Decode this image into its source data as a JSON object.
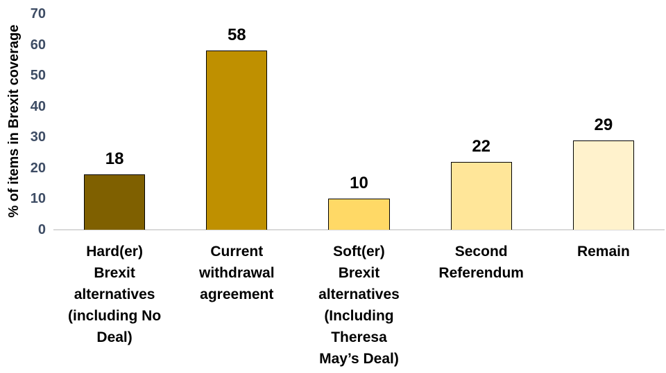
{
  "chart_data": {
    "type": "bar",
    "title": "",
    "xlabel": "",
    "ylabel": "% of items in Brexit coverage",
    "categories": [
      "Hard(er) Brexit alternatives (including No Deal)",
      "Current withdrawal agreement",
      "Soft(er) Brexit alternatives (Including Theresa May’s Deal)",
      "Second Referendum",
      "Remain"
    ],
    "category_lines": [
      [
        "Hard(er)",
        "Brexit",
        "alternatives",
        "(including No",
        "Deal)"
      ],
      [
        "Current",
        "withdrawal",
        "agreement"
      ],
      [
        "Soft(er)",
        "Brexit",
        "alternatives",
        "(Including",
        "Theresa",
        "May’s Deal)"
      ],
      [
        "Second",
        "Referendum"
      ],
      [
        "Remain"
      ]
    ],
    "values": [
      18,
      58,
      10,
      22,
      29
    ],
    "data_labels": [
      "18",
      "58",
      "10",
      "22",
      "29"
    ],
    "yticks": [
      0,
      10,
      20,
      30,
      40,
      50,
      60,
      70
    ],
    "ylim": [
      0,
      70
    ],
    "grid": false,
    "legend": "none",
    "bar_colors": [
      "#7F6000",
      "#BF9000",
      "#FFD966",
      "#FFE699",
      "#FFF2CC"
    ],
    "bar_outline_color": "#000000",
    "tick_label_color": "#3D4C64",
    "axis_line_color": "#D9D9D9",
    "background_color": "#FFFFFF"
  }
}
